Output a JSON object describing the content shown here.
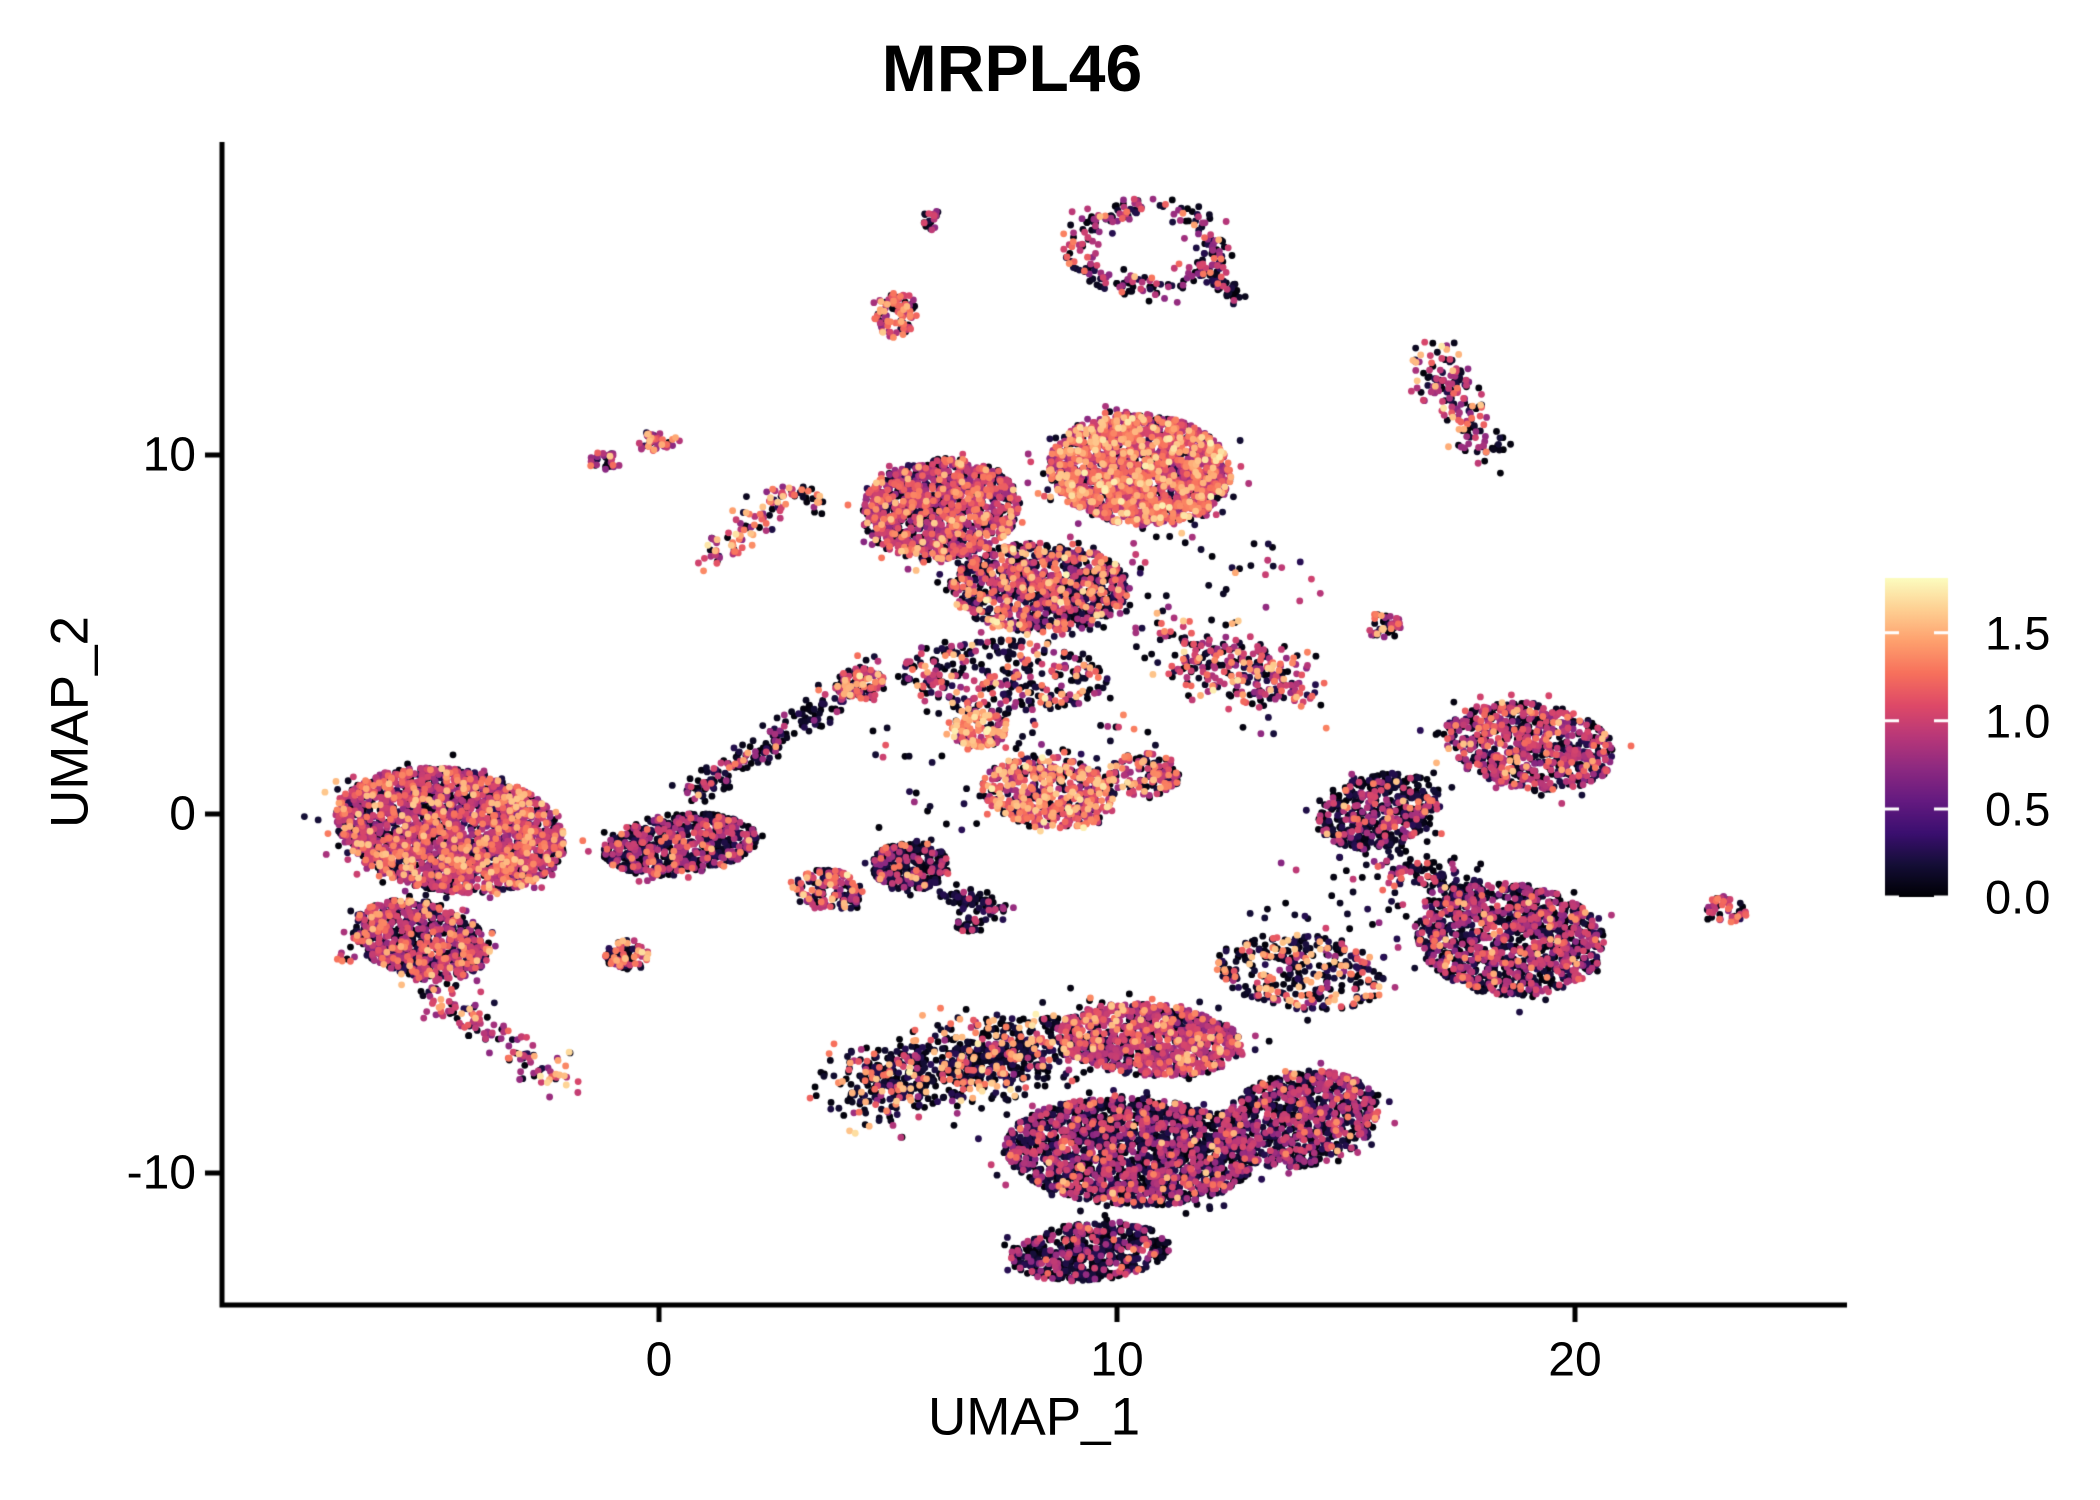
{
  "title": "MRPL46",
  "axes": {
    "x": {
      "label": "UMAP_1",
      "tick_labels": [
        "0",
        "10",
        "20"
      ],
      "tick_values": [
        0,
        10,
        20
      ],
      "range": [
        -9.54,
        25.95
      ]
    },
    "y": {
      "label": "UMAP_2",
      "tick_labels": [
        "-10",
        "0",
        "10"
      ],
      "tick_values": [
        -10,
        0,
        10
      ],
      "range": [
        -13.68,
        18.72
      ]
    }
  },
  "colorbar": {
    "tick_labels": [
      "1.5",
      "1.0",
      "0.5",
      "0.0"
    ],
    "tick_values": [
      1.5,
      1.0,
      0.5,
      0.0
    ],
    "domain": [
      0,
      1.81
    ],
    "palette_name": "magma",
    "stops": [
      {
        "t": 0.0,
        "c": "#000004"
      },
      {
        "t": 0.1,
        "c": "#140e36"
      },
      {
        "t": 0.2,
        "c": "#3b0f70"
      },
      {
        "t": 0.3,
        "c": "#641a80"
      },
      {
        "t": 0.4,
        "c": "#8c2981"
      },
      {
        "t": 0.5,
        "c": "#b73779"
      },
      {
        "t": 0.6,
        "c": "#de4968"
      },
      {
        "t": 0.7,
        "c": "#f7705c"
      },
      {
        "t": 0.8,
        "c": "#fe9f6d"
      },
      {
        "t": 0.9,
        "c": "#fecf92"
      },
      {
        "t": 1.0,
        "c": "#fcfdbf"
      }
    ]
  },
  "chart_data": {
    "type": "scatter",
    "title": "MRPL46",
    "xlabel": "UMAP_1",
    "ylabel": "UMAP_2",
    "xlim": [
      -9.5,
      26.0
    ],
    "ylim": [
      -13.7,
      18.7
    ],
    "grid": false,
    "legend_position": "right-colorbar",
    "n_points_approx": 20000,
    "point_radius_px": 3.4,
    "category_names": [
      "zero",
      "low",
      "mid",
      "high",
      "top"
    ],
    "value_categories": {
      "zero": [
        0.02,
        0.28
      ],
      "low": [
        0.7,
        1.06
      ],
      "mid": [
        1.12,
        1.38
      ],
      "high": [
        1.45,
        1.62
      ],
      "top": [
        1.64,
        1.78
      ]
    },
    "clusters": [
      {
        "name": "top-tiny-blob",
        "kind": "blob",
        "cx": 5.96,
        "cy": 16.55,
        "rx": 0.28,
        "ry": 0.3,
        "rot": 0,
        "n": 22,
        "mix": [
          55,
          40,
          5,
          0,
          0
        ]
      },
      {
        "name": "top-ring",
        "kind": "ring",
        "cx": 10.66,
        "cy": 15.77,
        "rx": 1.5,
        "ry": 1.12,
        "w": 0.16,
        "n": 240,
        "mix": [
          50,
          38,
          9,
          3,
          0
        ]
      },
      {
        "name": "top-ring-tail",
        "kind": "streak",
        "x1": 12.0,
        "y1": 15.0,
        "x2": 12.7,
        "y2": 14.3,
        "w": 0.14,
        "n": 40,
        "mix": [
          60,
          30,
          8,
          2,
          0
        ]
      },
      {
        "name": "upper-small-bright",
        "kind": "blob",
        "cx": 5.15,
        "cy": 13.9,
        "rx": 0.52,
        "ry": 0.62,
        "rot": 0,
        "n": 95,
        "mix": [
          22,
          33,
          28,
          15,
          2
        ]
      },
      {
        "name": "right-upper-streak",
        "kind": "streak",
        "x1": 16.75,
        "y1": 12.9,
        "x2": 18.1,
        "y2": 10.1,
        "w": 0.3,
        "n": 165,
        "mix": [
          52,
          30,
          10,
          7,
          1
        ]
      },
      {
        "name": "left-pair-a",
        "kind": "blob",
        "cx": -1.22,
        "cy": 9.86,
        "rx": 0.33,
        "ry": 0.28,
        "rot": 0,
        "n": 30,
        "mix": [
          25,
          45,
          22,
          8,
          0
        ]
      },
      {
        "name": "left-pair-b",
        "kind": "blob",
        "cx": -0.07,
        "cy": 10.36,
        "rx": 0.42,
        "ry": 0.3,
        "rot": 0,
        "n": 42,
        "mix": [
          25,
          40,
          20,
          13,
          2
        ]
      },
      {
        "name": "hook-streak",
        "kind": "streak",
        "x1": 1.1,
        "y1": 7.15,
        "x2": 2.9,
        "y2": 8.95,
        "w": 0.22,
        "n": 85,
        "mix": [
          28,
          30,
          22,
          17,
          3
        ]
      },
      {
        "name": "hook-arm",
        "kind": "streak",
        "x1": 2.9,
        "y1": 8.95,
        "x2": 3.6,
        "y2": 8.7,
        "w": 0.14,
        "n": 26,
        "mix": [
          45,
          30,
          15,
          8,
          2
        ]
      },
      {
        "name": "main-top-right-lobe",
        "kind": "blob",
        "cx": 10.5,
        "cy": 9.6,
        "rx": 2.0,
        "ry": 1.55,
        "rot": -8,
        "n": 1950,
        "mix": [
          18,
          45,
          25,
          10,
          2
        ]
      },
      {
        "name": "main-top-left-lobe",
        "kind": "blob",
        "cx": 6.15,
        "cy": 8.5,
        "rx": 1.75,
        "ry": 1.4,
        "rot": 12,
        "n": 1250,
        "mix": [
          38,
          42,
          15,
          5,
          0
        ]
      },
      {
        "name": "main-top-mid-dark",
        "kind": "blob",
        "cx": 8.3,
        "cy": 6.3,
        "rx": 1.95,
        "ry": 1.25,
        "rot": 0,
        "n": 1000,
        "mix": [
          52,
          27,
          14,
          6,
          1
        ]
      },
      {
        "name": "main-top-fringe",
        "kind": "blob",
        "cx": 7.5,
        "cy": 3.8,
        "rx": 2.3,
        "ry": 1.05,
        "rot": 0,
        "n": 330,
        "mix": [
          58,
          22,
          13,
          6,
          1
        ]
      },
      {
        "name": "right-wing-arm",
        "kind": "streak",
        "x1": 11.3,
        "y1": 4.7,
        "x2": 13.9,
        "y2": 3.4,
        "w": 0.42,
        "n": 290,
        "mix": [
          45,
          32,
          15,
          7,
          1
        ]
      },
      {
        "name": "small-pair-right",
        "kind": "blob",
        "cx": 15.81,
        "cy": 5.26,
        "rx": 0.45,
        "ry": 0.35,
        "rot": 0,
        "n": 48,
        "mix": [
          48,
          32,
          16,
          4,
          0
        ]
      },
      {
        "name": "bright-small-mid",
        "kind": "blob",
        "cx": 7.0,
        "cy": 2.35,
        "rx": 0.62,
        "ry": 0.5,
        "rot": 0,
        "n": 135,
        "mix": [
          20,
          28,
          30,
          18,
          4
        ]
      },
      {
        "name": "bright-mid-cluster",
        "kind": "blob",
        "cx": 8.5,
        "cy": 0.6,
        "rx": 1.45,
        "ry": 1.0,
        "rot": -10,
        "n": 500,
        "mix": [
          24,
          30,
          28,
          15,
          3
        ]
      },
      {
        "name": "bright-mid-ext",
        "kind": "blob",
        "cx": 10.6,
        "cy": 1.1,
        "rx": 0.8,
        "ry": 0.6,
        "rot": 0,
        "n": 140,
        "mix": [
          35,
          30,
          22,
          11,
          2
        ]
      },
      {
        "name": "left-main",
        "kind": "blob",
        "cx": -4.56,
        "cy": -0.45,
        "rx": 2.55,
        "ry": 1.7,
        "rot": -14,
        "n": 2350,
        "mix": [
          34,
          46,
          14,
          6,
          0
        ]
      },
      {
        "name": "left-lower",
        "kind": "blob",
        "cx": -5.2,
        "cy": -3.5,
        "rx": 1.55,
        "ry": 1.05,
        "rot": -20,
        "n": 760,
        "mix": [
          44,
          42,
          10,
          4,
          0
        ]
      },
      {
        "name": "left-tail",
        "kind": "streak",
        "x1": -5.0,
        "y1": -4.8,
        "x2": -2.1,
        "y2": -7.6,
        "w": 0.26,
        "n": 135,
        "mix": [
          30,
          48,
          14,
          8,
          0
        ],
        "brightTip": true
      },
      {
        "name": "left-dark-companion",
        "kind": "blob",
        "cx": 0.46,
        "cy": -0.86,
        "rx": 1.7,
        "ry": 0.85,
        "rot": 8,
        "n": 660,
        "mix": [
          64,
          29,
          6,
          1,
          0
        ]
      },
      {
        "name": "tiny-left-dots",
        "kind": "blob",
        "cx": -6.86,
        "cy": -4.0,
        "rx": 0.2,
        "ry": 0.16,
        "rot": 0,
        "n": 7,
        "mix": [
          25,
          40,
          35,
          0,
          0
        ]
      },
      {
        "name": "small-below-left",
        "kind": "blob",
        "cx": -0.68,
        "cy": -3.93,
        "rx": 0.5,
        "ry": 0.42,
        "rot": 0,
        "n": 80,
        "mix": [
          40,
          30,
          20,
          9,
          1
        ]
      },
      {
        "name": "small-mid-low",
        "kind": "blob",
        "cx": 3.73,
        "cy": -2.1,
        "rx": 0.75,
        "ry": 0.55,
        "rot": -12,
        "n": 165,
        "mix": [
          42,
          30,
          17,
          9,
          2
        ]
      },
      {
        "name": "dark-triangle",
        "kind": "blob",
        "cx": 5.5,
        "cy": -1.45,
        "rx": 0.85,
        "ry": 0.68,
        "rot": 0,
        "n": 330,
        "mix": [
          78,
          18,
          3,
          1,
          0
        ]
      },
      {
        "name": "dark-triangle-tail",
        "kind": "streak",
        "x1": 6.3,
        "y1": -2.2,
        "x2": 7.4,
        "y2": -2.7,
        "w": 0.16,
        "n": 70,
        "mix": [
          85,
          13,
          2,
          0,
          0
        ]
      },
      {
        "name": "tiny-dark-below",
        "kind": "blob",
        "cx": 6.79,
        "cy": -3.09,
        "rx": 0.3,
        "ry": 0.22,
        "rot": 0,
        "n": 25,
        "mix": [
          75,
          23,
          2,
          0,
          0
        ]
      },
      {
        "name": "bridge-streak",
        "kind": "streak",
        "x1": 0.7,
        "y1": 0.5,
        "x2": 4.7,
        "y2": 4.0,
        "w": 0.2,
        "n": 220,
        "mix": [
          74,
          18,
          6,
          2,
          0
        ]
      },
      {
        "name": "bridge-top-blob",
        "kind": "blob",
        "cx": 4.4,
        "cy": 3.6,
        "rx": 0.55,
        "ry": 0.45,
        "rot": 0,
        "n": 85,
        "mix": [
          30,
          30,
          25,
          13,
          2
        ]
      },
      {
        "name": "bottom-left-wing",
        "kind": "streak",
        "x1": 4.2,
        "y1": -7.7,
        "x2": 8.8,
        "y2": -6.2,
        "w": 0.55,
        "n": 780,
        "mix": [
          71,
          9,
          9,
          10,
          1
        ]
      },
      {
        "name": "bottom-purple-patch",
        "kind": "blob",
        "cx": 10.7,
        "cy": -6.3,
        "rx": 2.05,
        "ry": 1.0,
        "rot": -6,
        "n": 980,
        "mix": [
          33,
          55,
          9,
          3,
          0
        ]
      },
      {
        "name": "bottom-main-dark",
        "kind": "blob",
        "cx": 10.3,
        "cy": -9.4,
        "rx": 2.75,
        "ry": 1.5,
        "rot": -4,
        "n": 1950,
        "mix": [
          68,
          27,
          4,
          1,
          0
        ]
      },
      {
        "name": "bottom-lower-bulge",
        "kind": "blob",
        "cx": 9.4,
        "cy": -12.2,
        "rx": 1.75,
        "ry": 0.8,
        "rot": 6,
        "n": 520,
        "mix": [
          74,
          23,
          3,
          0,
          0
        ]
      },
      {
        "name": "bottom-right-lobe",
        "kind": "blob",
        "cx": 14.0,
        "cy": -8.5,
        "rx": 1.75,
        "ry": 1.3,
        "rot": 18,
        "n": 860,
        "mix": [
          58,
          37,
          4,
          1,
          0
        ]
      },
      {
        "name": "orange-sprinkle-zone",
        "kind": "blob",
        "cx": 14.0,
        "cy": -4.4,
        "rx": 1.85,
        "ry": 1.05,
        "rot": -10,
        "n": 330,
        "mix": [
          64,
          9,
          13,
          13,
          1
        ]
      },
      {
        "name": "right-bottom-main",
        "kind": "blob",
        "cx": 18.6,
        "cy": -3.5,
        "rx": 2.05,
        "ry": 1.55,
        "rot": -8,
        "n": 1150,
        "mix": [
          60,
          33,
          5,
          2,
          0
        ]
      },
      {
        "name": "right-bottom-arm",
        "kind": "streak",
        "x1": 15.9,
        "y1": -1.5,
        "x2": 17.7,
        "y2": -2.1,
        "w": 0.32,
        "n": 120,
        "mix": [
          70,
          20,
          8,
          2,
          0
        ]
      },
      {
        "name": "right-mid-dark",
        "kind": "blob",
        "cx": 15.74,
        "cy": 0.1,
        "rx": 1.4,
        "ry": 1.0,
        "rot": 25,
        "n": 480,
        "mix": [
          70,
          24,
          5,
          1,
          0
        ]
      },
      {
        "name": "right-mid-purple",
        "kind": "blob",
        "cx": 19.0,
        "cy": 1.9,
        "rx": 1.9,
        "ry": 1.2,
        "rot": -12,
        "n": 730,
        "mix": [
          44,
          45,
          9,
          2,
          0
        ]
      },
      {
        "name": "far-right-small",
        "kind": "blob",
        "cx": 23.3,
        "cy": -2.65,
        "rx": 0.45,
        "ry": 0.38,
        "rot": 0,
        "n": 50,
        "mix": [
          30,
          40,
          28,
          2,
          0
        ]
      },
      {
        "name": "scatter-center",
        "kind": "blob",
        "cx": 7.8,
        "cy": 1.8,
        "rx": 3.2,
        "ry": 2.6,
        "rot": 0,
        "n": 80,
        "mix": [
          75,
          20,
          5,
          0,
          0
        ]
      },
      {
        "name": "scatter-right",
        "kind": "blob",
        "cx": 15.6,
        "cy": -2.0,
        "rx": 2.6,
        "ry": 2.2,
        "rot": 0,
        "n": 60,
        "mix": [
          72,
          22,
          6,
          0,
          0
        ]
      },
      {
        "name": "scatter-top",
        "kind": "blob",
        "cx": 11.5,
        "cy": 6.2,
        "rx": 3.0,
        "ry": 1.7,
        "rot": 0,
        "n": 55,
        "mix": [
          55,
          35,
          8,
          2,
          0
        ]
      }
    ]
  },
  "seed": 1337
}
